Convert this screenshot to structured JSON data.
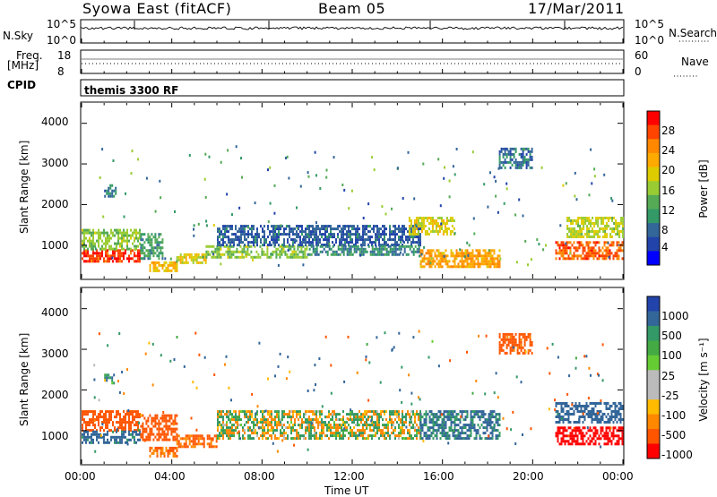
{
  "header": {
    "station": "Syowa East (fitACF)",
    "beam": "Beam 05",
    "date": "17/Mar/2011"
  },
  "panels": {
    "nsky": {
      "left_label": "N.Sky",
      "left_ticks": [
        "10^5",
        "10^0"
      ],
      "right_label": "N.Search",
      "right_ticks": [
        "10^5",
        "10^0"
      ]
    },
    "freq": {
      "left_label_1": "Freq.",
      "left_label_2": "[MHz]",
      "left_ticks": [
        "18",
        "8"
      ],
      "right_label": "Nave",
      "right_ticks": [
        "60",
        "0"
      ]
    },
    "cpid": {
      "label": "CPID",
      "program": "themis 3300 RF"
    }
  },
  "axes": {
    "y_label": "Slant Range [km]",
    "y_ticks": [
      "4000",
      "3000",
      "2000",
      "1000"
    ],
    "x_label": "Time UT",
    "x_ticks": [
      "00:00",
      "04:00",
      "08:00",
      "12:00",
      "16:00",
      "20:00",
      "00:00"
    ]
  },
  "colorbars": {
    "power": {
      "label": "Power [dB]",
      "ticks": [
        "28",
        "24",
        "20",
        "16",
        "12",
        "8",
        "4"
      ],
      "colors": [
        "#ff0000",
        "#ff4400",
        "#ff8800",
        "#ffaa00",
        "#ddcc00",
        "#99cc33",
        "#55aa55",
        "#339966",
        "#336699",
        "#2244aa",
        "#0000ff"
      ]
    },
    "velocity": {
      "label": "Velocity [m s⁻¹]",
      "ticks": [
        "1000",
        "500",
        "100",
        "25",
        "-25",
        "-100",
        "-500",
        "-1000"
      ],
      "colors": [
        "#2244aa",
        "#336699",
        "#339966",
        "#44aa44",
        "#66cc33",
        "#bbbbbb",
        "#bbbbbb",
        "#ffbb00",
        "#ff8800",
        "#ff5500",
        "#ff0000"
      ]
    }
  },
  "chart_data": [
    {
      "type": "heatmap",
      "title": "Syowa East (fitACF) Beam 05 17/Mar/2011",
      "quantity": "Power [dB]",
      "xlabel": "Time UT",
      "ylabel": "Slant Range [km]",
      "xlim": [
        "00:00",
        "24:00"
      ],
      "ylim": [
        180,
        4500
      ],
      "colorbar_range": [
        0,
        30
      ],
      "regions": [
        {
          "t_start": 0.0,
          "t_end": 2.6,
          "range_km": [
            600,
            900
          ],
          "value_db": 28
        },
        {
          "t_start": 0.0,
          "t_end": 2.6,
          "range_km": [
            900,
            1400
          ],
          "value_db": 14
        },
        {
          "t_start": 1.0,
          "t_end": 1.5,
          "range_km": [
            2200,
            2500
          ],
          "value_db": 6
        },
        {
          "t_start": 2.6,
          "t_end": 3.6,
          "range_km": [
            700,
            1300
          ],
          "value_db": 10
        },
        {
          "t_start": 3.0,
          "t_end": 4.2,
          "range_km": [
            400,
            600
          ],
          "value_db": 20
        },
        {
          "t_start": 4.2,
          "t_end": 5.5,
          "range_km": [
            600,
            800
          ],
          "value_db": 18
        },
        {
          "t_start": 5.5,
          "t_end": 10.0,
          "range_km": [
            700,
            1000
          ],
          "value_db": 14
        },
        {
          "t_start": 6.0,
          "t_end": 15.0,
          "range_km": [
            1000,
            1500
          ],
          "value_db": 5
        },
        {
          "t_start": 10.0,
          "t_end": 15.0,
          "range_km": [
            800,
            1000
          ],
          "value_db": 8
        },
        {
          "t_start": 14.5,
          "t_end": 16.5,
          "range_km": [
            1300,
            1700
          ],
          "value_db": 18
        },
        {
          "t_start": 15.0,
          "t_end": 18.5,
          "range_km": [
            500,
            900
          ],
          "value_db": 22
        },
        {
          "t_start": 18.5,
          "t_end": 20.0,
          "range_km": [
            2900,
            3400
          ],
          "value_db": 6
        },
        {
          "t_start": 21.0,
          "t_end": 24.0,
          "range_km": [
            700,
            1100
          ],
          "value_db": 26
        },
        {
          "t_start": 21.5,
          "t_end": 24.0,
          "range_km": [
            1200,
            1700
          ],
          "value_db": 16
        }
      ]
    },
    {
      "type": "heatmap",
      "quantity": "Velocity [m s⁻¹]",
      "xlabel": "Time UT",
      "ylabel": "Slant Range [km]",
      "xlim": [
        "00:00",
        "24:00"
      ],
      "ylim": [
        180,
        4500
      ],
      "colorbar_ticks": [
        1000,
        500,
        100,
        25,
        -25,
        -100,
        -500,
        -1000
      ],
      "regions": [
        {
          "t_start": 0.0,
          "t_end": 2.6,
          "range_km": [
            1000,
            1500
          ],
          "value_ms": -300
        },
        {
          "t_start": 0.0,
          "t_end": 2.6,
          "range_km": [
            700,
            1000
          ],
          "value_ms": 200
        },
        {
          "t_start": 1.0,
          "t_end": 1.4,
          "range_km": [
            2200,
            2400
          ],
          "value_ms": 80
        },
        {
          "t_start": 2.6,
          "t_end": 4.2,
          "range_km": [
            800,
            1400
          ],
          "value_ms": -300
        },
        {
          "t_start": 4.2,
          "t_end": 6.0,
          "range_km": [
            600,
            900
          ],
          "value_ms": -150
        },
        {
          "t_start": 3.0,
          "t_end": 4.2,
          "range_km": [
            350,
            600
          ],
          "value_ms": -150
        },
        {
          "t_start": 6.0,
          "t_end": 15.0,
          "range_km": [
            800,
            1500
          ],
          "value_ms": 0
        },
        {
          "t_start": 15.0,
          "t_end": 18.5,
          "range_km": [
            800,
            1500
          ],
          "value_ms": 150
        },
        {
          "t_start": 18.5,
          "t_end": 20.0,
          "range_km": [
            2900,
            3400
          ],
          "value_ms": -200
        },
        {
          "t_start": 21.0,
          "t_end": 24.0,
          "range_km": [
            700,
            1100
          ],
          "value_ms": -600
        },
        {
          "t_start": 21.0,
          "t_end": 24.0,
          "range_km": [
            1200,
            1700
          ],
          "value_ms": 300
        }
      ]
    }
  ]
}
